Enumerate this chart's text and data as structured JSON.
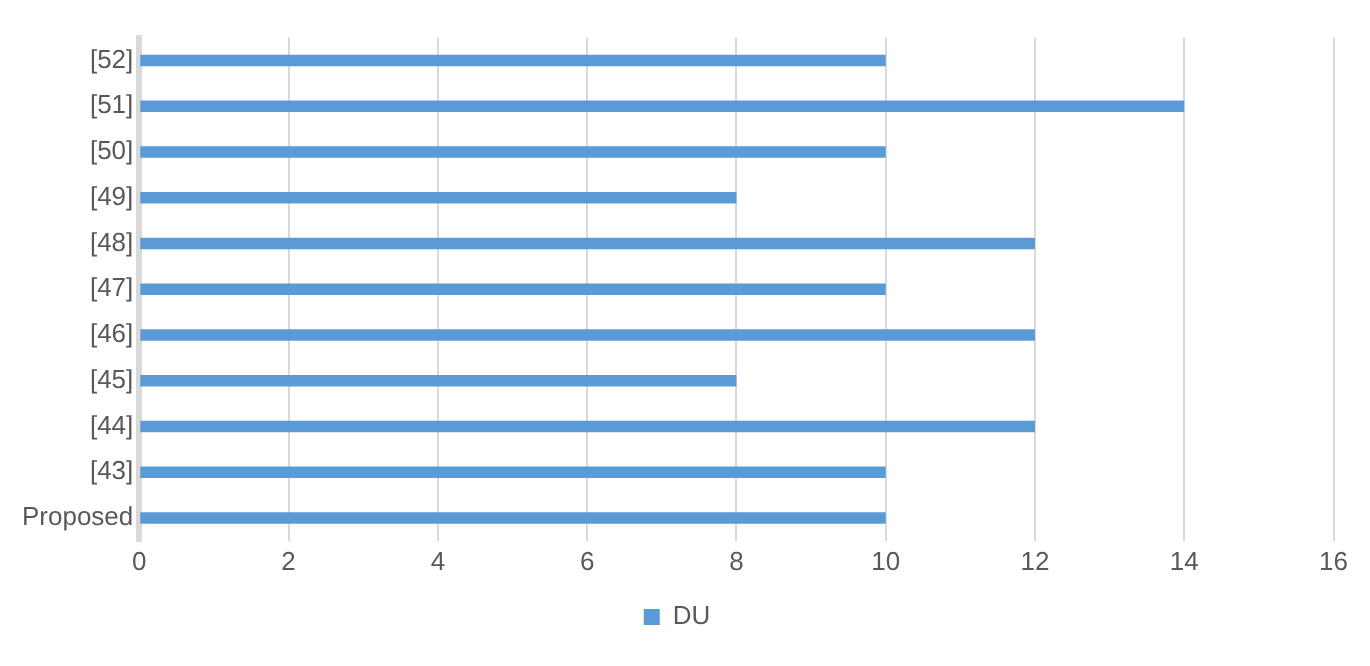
{
  "chart_data": {
    "type": "bar",
    "orientation": "horizontal",
    "categories": [
      "[52]",
      "[51]",
      "[50]",
      "[49]",
      "[48]",
      "[47]",
      "[46]",
      "[45]",
      "[44]",
      "[43]",
      "Proposed"
    ],
    "series": [
      {
        "name": "DU",
        "color": "#5b9bd5",
        "values": [
          10,
          14,
          10,
          8,
          12,
          10,
          12,
          8,
          12,
          10,
          10
        ]
      }
    ],
    "xlim": [
      0,
      16
    ],
    "xticks": [
      0,
      2,
      4,
      6,
      8,
      10,
      12,
      14,
      16
    ],
    "grid": "x",
    "legend": "bottom"
  }
}
